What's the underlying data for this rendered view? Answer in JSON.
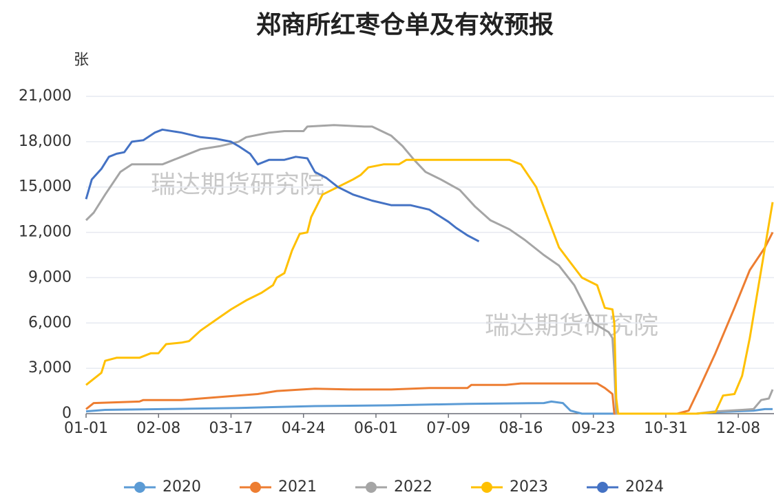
{
  "chart_data": {
    "type": "line",
    "title": "郑商所红枣仓单及有效预报",
    "y_label": "张",
    "watermarks": [
      "瑞达期货研究院",
      "瑞达期货研究院"
    ],
    "xlim": [
      0,
      360
    ],
    "xticks": [
      {
        "value": 0,
        "label": "01-01"
      },
      {
        "value": 38,
        "label": "02-08"
      },
      {
        "value": 76,
        "label": "03-17"
      },
      {
        "value": 114,
        "label": "04-24"
      },
      {
        "value": 152,
        "label": "06-01"
      },
      {
        "value": 190,
        "label": "07-09"
      },
      {
        "value": 228,
        "label": "08-16"
      },
      {
        "value": 266,
        "label": "09-23"
      },
      {
        "value": 304,
        "label": "10-31"
      },
      {
        "value": 342,
        "label": "12-08"
      }
    ],
    "ylim": [
      0,
      21000
    ],
    "yticks": [
      0,
      {
        "value": 3000,
        "label": "3,000"
      },
      {
        "value": 6000,
        "label": "6,000"
      },
      {
        "value": 9000,
        "label": "9,000"
      },
      {
        "value": 12000,
        "label": "12,000"
      },
      {
        "value": 15000,
        "label": "15,000"
      },
      {
        "value": 18000,
        "label": "18,000"
      },
      {
        "value": 21000,
        "label": "21,000"
      }
    ],
    "grid": true,
    "legend": "bottom",
    "series": [
      {
        "name": "2020",
        "color": "#5b9bd5",
        "x": [
          0,
          10,
          40,
          80,
          120,
          160,
          200,
          240,
          244,
          250,
          254,
          260,
          320,
          330,
          350,
          356,
          360
        ],
        "values": [
          150,
          250,
          300,
          380,
          500,
          550,
          650,
          700,
          800,
          700,
          200,
          0,
          0,
          100,
          200,
          300,
          300
        ]
      },
      {
        "name": "2021",
        "color": "#ed7d31",
        "x": [
          0,
          4,
          28,
          30,
          50,
          60,
          90,
          100,
          120,
          140,
          160,
          180,
          200,
          202,
          220,
          228,
          268,
          272,
          276,
          277,
          310,
          316,
          322,
          330,
          340,
          348,
          356,
          360
        ],
        "values": [
          300,
          700,
          800,
          900,
          900,
          1000,
          1300,
          1500,
          1650,
          1600,
          1600,
          1700,
          1700,
          1900,
          1900,
          2000,
          2000,
          1700,
          1300,
          0,
          0,
          200,
          1800,
          4000,
          7000,
          9500,
          11000,
          12000
        ]
      },
      {
        "name": "2022",
        "color": "#a5a5a5",
        "x": [
          0,
          4,
          10,
          18,
          24,
          40,
          50,
          60,
          70,
          80,
          84,
          96,
          104,
          114,
          116,
          130,
          146,
          150,
          160,
          166,
          172,
          178,
          186,
          196,
          204,
          212,
          222,
          230,
          240,
          248,
          256,
          262,
          266,
          274,
          276,
          277,
          278,
          320,
          330,
          344,
          350,
          354,
          358,
          360
        ],
        "values": [
          12800,
          13300,
          14500,
          16000,
          16500,
          16500,
          17000,
          17500,
          17700,
          18000,
          18300,
          18600,
          18700,
          18700,
          19000,
          19100,
          19000,
          19000,
          18400,
          17700,
          16800,
          16000,
          15500,
          14800,
          13700,
          12800,
          12200,
          11500,
          10500,
          9800,
          8500,
          7000,
          6000,
          5400,
          5000,
          3000,
          0,
          0,
          150,
          250,
          300,
          900,
          1000,
          1600
        ]
      },
      {
        "name": "2023",
        "color": "#ffc000",
        "x": [
          0,
          8,
          10,
          16,
          28,
          34,
          38,
          42,
          50,
          54,
          60,
          68,
          76,
          84,
          92,
          98,
          100,
          104,
          108,
          112,
          116,
          118,
          124,
          132,
          140,
          144,
          148,
          156,
          164,
          168,
          180,
          200,
          214,
          222,
          228,
          236,
          242,
          248,
          254,
          260,
          268,
          272,
          276,
          277,
          278,
          279,
          320,
          330,
          334,
          340,
          344,
          348,
          352,
          356,
          360
        ],
        "values": [
          1900,
          2700,
          3500,
          3700,
          3700,
          4000,
          4000,
          4600,
          4700,
          4800,
          5500,
          6200,
          6900,
          7500,
          8000,
          8500,
          9000,
          9300,
          10800,
          11900,
          12000,
          13000,
          14500,
          15000,
          15500,
          15800,
          16300,
          16500,
          16500,
          16800,
          16800,
          16800,
          16800,
          16800,
          16500,
          15000,
          13000,
          11000,
          10000,
          9000,
          8500,
          7000,
          6900,
          6000,
          1000,
          0,
          0,
          100,
          1200,
          1300,
          2500,
          5000,
          8000,
          11000,
          14000
        ]
      },
      {
        "name": "2024",
        "color": "#4472c4",
        "x": [
          0,
          3,
          8,
          12,
          16,
          20,
          24,
          30,
          36,
          40,
          50,
          60,
          68,
          76,
          80,
          86,
          90,
          96,
          104,
          110,
          116,
          120,
          126,
          132,
          140,
          150,
          160,
          170,
          180,
          190,
          194,
          200,
          206
        ],
        "values": [
          14200,
          15500,
          16200,
          17000,
          17200,
          17300,
          18000,
          18100,
          18600,
          18800,
          18600,
          18300,
          18200,
          18000,
          17700,
          17200,
          16500,
          16800,
          16800,
          17000,
          16900,
          16000,
          15600,
          15000,
          14500,
          14100,
          13800,
          13800,
          13500,
          12700,
          12300,
          11800,
          11400
        ]
      }
    ]
  }
}
